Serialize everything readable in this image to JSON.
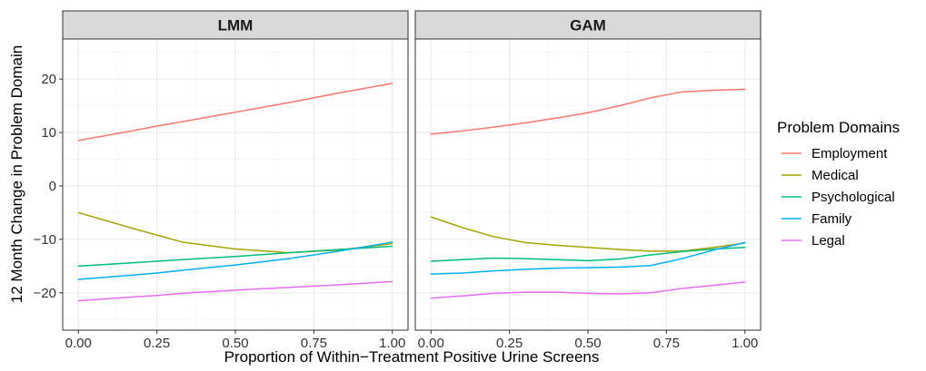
{
  "chart_data": {
    "type": "line",
    "xlabel": "Proportion of Within−Treatment Positive Urine Screens",
    "ylabel": "12 Month Change in Problem Domain",
    "xlim": [
      -0.05,
      1.05
    ],
    "ylim": [
      -27,
      27.5
    ],
    "x_ticks": [
      0,
      0.25,
      0.5,
      0.75,
      1
    ],
    "x_tick_labels": [
      "0.00",
      "0.25",
      "0.50",
      "0.75",
      "1.00"
    ],
    "y_ticks": [
      20,
      10,
      0,
      -10,
      -20
    ],
    "y_tick_labels": [
      "20",
      "10",
      "0",
      "−10",
      "−20"
    ],
    "grid": true,
    "legend": {
      "title": "Problem Domains",
      "placement": "right",
      "entries": [
        {
          "name": "Employment",
          "color": "#F8766D"
        },
        {
          "name": "Medical",
          "color": "#A3A500"
        },
        {
          "name": "Psychological",
          "color": "#00BF7D"
        },
        {
          "name": "Family",
          "color": "#00B0F6"
        },
        {
          "name": "Legal",
          "color": "#E76BF3"
        }
      ]
    },
    "panels": [
      {
        "title": "LMM",
        "x": [
          0,
          0.17,
          0.25,
          0.33,
          0.5,
          0.67,
          0.83,
          1
        ],
        "series": [
          {
            "name": "Employment",
            "values": [
              8.5,
              10.3,
              11.2,
              12.0,
              13.8,
              15.6,
              17.4,
              19.2
            ]
          },
          {
            "name": "Medical",
            "values": [
              -5.0,
              -7.9,
              -9.2,
              -10.5,
              -11.8,
              -12.5,
              -12.0,
              -10.8
            ]
          },
          {
            "name": "Psychological",
            "values": [
              -15.0,
              -14.4,
              -14.1,
              -13.8,
              -13.2,
              -12.5,
              -11.9,
              -11.3
            ]
          },
          {
            "name": "Family",
            "values": [
              -17.5,
              -16.7,
              -16.3,
              -15.8,
              -14.8,
              -13.6,
              -12.2,
              -10.5
            ]
          },
          {
            "name": "Legal",
            "values": [
              -21.5,
              -20.8,
              -20.5,
              -20.1,
              -19.5,
              -19.0,
              -18.5,
              -17.9
            ]
          }
        ]
      },
      {
        "title": "GAM",
        "x": [
          0,
          0.1,
          0.2,
          0.3,
          0.4,
          0.5,
          0.6,
          0.7,
          0.8,
          0.9,
          1
        ],
        "series": [
          {
            "name": "Employment",
            "values": [
              9.7,
              10.3,
              11.0,
              11.8,
              12.7,
              13.7,
              15.0,
              16.5,
              17.6,
              17.9,
              18.1
            ]
          },
          {
            "name": "Medical",
            "values": [
              -5.8,
              -7.8,
              -9.5,
              -10.6,
              -11.1,
              -11.5,
              -11.9,
              -12.2,
              -12.2,
              -11.5,
              -10.7
            ]
          },
          {
            "name": "Psychological",
            "values": [
              -14.1,
              -13.8,
              -13.5,
              -13.6,
              -13.8,
              -14.0,
              -13.7,
              -12.9,
              -12.3,
              -11.8,
              -11.5
            ]
          },
          {
            "name": "Family",
            "values": [
              -16.5,
              -16.3,
              -15.9,
              -15.6,
              -15.4,
              -15.3,
              -15.2,
              -14.9,
              -13.6,
              -12.0,
              -10.6
            ]
          },
          {
            "name": "Legal",
            "values": [
              -21.0,
              -20.6,
              -20.1,
              -19.9,
              -19.9,
              -20.1,
              -20.2,
              -20.0,
              -19.2,
              -18.6,
              -18.0
            ]
          }
        ]
      }
    ]
  }
}
